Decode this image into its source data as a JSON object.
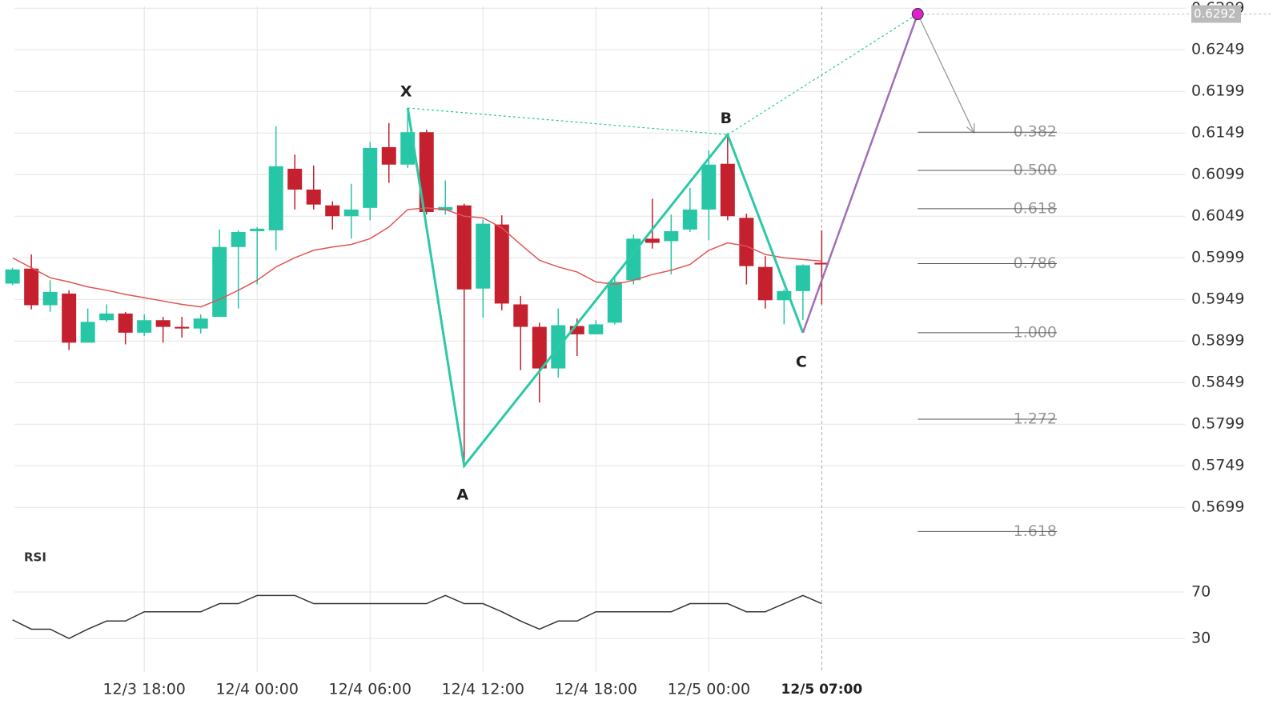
{
  "chart_data": {
    "type": "candlestick",
    "xlim": [
      0.1,
      62.3
    ],
    "ylim": [
      0.5655,
      0.6305
    ],
    "yticks": [
      0.5699,
      0.5749,
      0.5799,
      0.5849,
      0.5899,
      0.5949,
      0.5999,
      0.6049,
      0.6099,
      0.6149,
      0.6199,
      0.6249,
      0.6299
    ],
    "xticks": [
      {
        "value": 7,
        "label": "12/3 18:00"
      },
      {
        "value": 13,
        "label": "12/4 00:00"
      },
      {
        "value": 19,
        "label": "12/4 06:00"
      },
      {
        "value": 25,
        "label": "12/4 12:00"
      },
      {
        "value": 31,
        "label": "12/4 18:00"
      },
      {
        "value": 37,
        "label": "12/5 00:00"
      }
    ],
    "current_x": {
      "value": 43,
      "label": "12/5 07:00"
    },
    "grid": true,
    "up_color": "#26c6a6",
    "down_color": "#c4202e",
    "open": [
      0.5968,
      0.5986,
      0.5942,
      0.5956,
      0.5897,
      0.5924,
      0.5932,
      0.5909,
      0.5924,
      0.5916,
      0.5914,
      0.5928,
      0.6012,
      0.6031,
      0.6032,
      0.6106,
      0.6081,
      0.6062,
      0.6049,
      0.6059,
      0.6132,
      0.6111,
      0.615,
      0.6056,
      0.6062,
      0.5962,
      0.6039,
      0.5943,
      0.5916,
      0.5866,
      0.5917,
      0.5907,
      0.5921,
      0.5972,
      0.6022,
      0.6019,
      0.6033,
      0.6057,
      0.6112,
      0.6047,
      0.5988,
      0.5948,
      0.5959,
      0.5993
    ],
    "high": [
      0.5987,
      0.6003,
      0.5972,
      0.596,
      0.5938,
      0.5943,
      0.5934,
      0.5931,
      0.5928,
      0.5928,
      0.5931,
      0.6033,
      0.6032,
      0.6036,
      0.6157,
      0.6123,
      0.611,
      0.6067,
      0.6088,
      0.6138,
      0.6161,
      0.6179,
      0.6153,
      0.6092,
      0.6064,
      0.6045,
      0.605,
      0.5953,
      0.5921,
      0.5938,
      0.5926,
      0.5924,
      0.5977,
      0.6027,
      0.607,
      0.6051,
      0.6083,
      0.6128,
      0.6147,
      0.6052,
      0.6001,
      0.5961,
      0.5991,
      0.6032
    ],
    "low": [
      0.5966,
      0.5937,
      0.5934,
      0.5888,
      0.5897,
      0.5922,
      0.5895,
      0.5905,
      0.5897,
      0.5903,
      0.5908,
      0.5929,
      0.5938,
      0.5967,
      0.6008,
      0.6057,
      0.6057,
      0.6033,
      0.6022,
      0.6044,
      0.6089,
      0.6107,
      0.6051,
      0.6051,
      0.5749,
      0.5927,
      0.5936,
      0.5864,
      0.5825,
      0.5855,
      0.5881,
      0.5907,
      0.5919,
      0.5967,
      0.601,
      0.5979,
      0.603,
      0.602,
      0.6044,
      0.5967,
      0.5938,
      0.5919,
      0.5924,
      0.5943
    ],
    "close": [
      0.5985,
      0.5942,
      0.5958,
      0.5897,
      0.5922,
      0.5932,
      0.5909,
      0.5924,
      0.5916,
      0.5914,
      0.5926,
      0.6012,
      0.603,
      0.6034,
      0.6109,
      0.6081,
      0.6063,
      0.6049,
      0.6057,
      0.6131,
      0.6111,
      0.615,
      0.6054,
      0.606,
      0.5961,
      0.604,
      0.5944,
      0.5916,
      0.5866,
      0.5918,
      0.5907,
      0.5919,
      0.597,
      0.6022,
      0.6017,
      0.6031,
      0.6057,
      0.6111,
      0.6049,
      0.5989,
      0.5948,
      0.5959,
      0.599,
      0.5991
    ],
    "moving_average": {
      "color": "#e05555",
      "values": [
        0.5999,
        0.5987,
        0.5975,
        0.597,
        0.5964,
        0.596,
        0.5955,
        0.5951,
        0.5947,
        0.5943,
        0.594,
        0.5949,
        0.596,
        0.5972,
        0.5988,
        0.5999,
        0.6008,
        0.6012,
        0.6015,
        0.6022,
        0.6036,
        0.6057,
        0.6059,
        0.6057,
        0.6049,
        0.6047,
        0.6035,
        0.6015,
        0.5996,
        0.5988,
        0.5982,
        0.597,
        0.5967,
        0.5972,
        0.5979,
        0.5984,
        0.5991,
        0.6008,
        0.6017,
        0.6013,
        0.6003,
        0.5999,
        0.5997,
        0.5995
      ]
    },
    "pattern": {
      "color": "#2bc9a6",
      "projection_color": "#a070b8",
      "marker_color": "#e020d0",
      "points": [
        {
          "label": "X",
          "x": 21,
          "y": 0.6179
        },
        {
          "label": "A",
          "x": 24,
          "y": 0.5749
        },
        {
          "label": "B",
          "x": 38,
          "y": 0.6147
        },
        {
          "label": "C",
          "x": 42,
          "y": 0.5909
        }
      ],
      "projection": {
        "x": 48.1,
        "y": 0.6292
      },
      "target": {
        "x": 51.1,
        "y": 0.6149
      }
    },
    "fib_levels": [
      {
        "label": "0.382",
        "value": 0.615
      },
      {
        "label": "0.500",
        "value": 0.6104
      },
      {
        "label": "0.618",
        "value": 0.6058
      },
      {
        "label": "0.786",
        "value": 0.5992
      },
      {
        "label": "1.000",
        "value": 0.5909
      },
      {
        "label": "1.272",
        "value": 0.5805
      },
      {
        "label": "1.618",
        "value": 0.567
      }
    ],
    "rsi": {
      "title": "RSI",
      "color": "#333333",
      "ylim": [
        8,
        80
      ],
      "yticks": [
        30,
        70
      ],
      "values": [
        46,
        38,
        38,
        30,
        38,
        45,
        45,
        53,
        53,
        53,
        53,
        60,
        60,
        67,
        67,
        67,
        60,
        60,
        60,
        60,
        60,
        60,
        60,
        67,
        60,
        60,
        53,
        45,
        38,
        45,
        45,
        53,
        53,
        53,
        53,
        53,
        60,
        60,
        60,
        53,
        53,
        60,
        67,
        60
      ]
    }
  }
}
